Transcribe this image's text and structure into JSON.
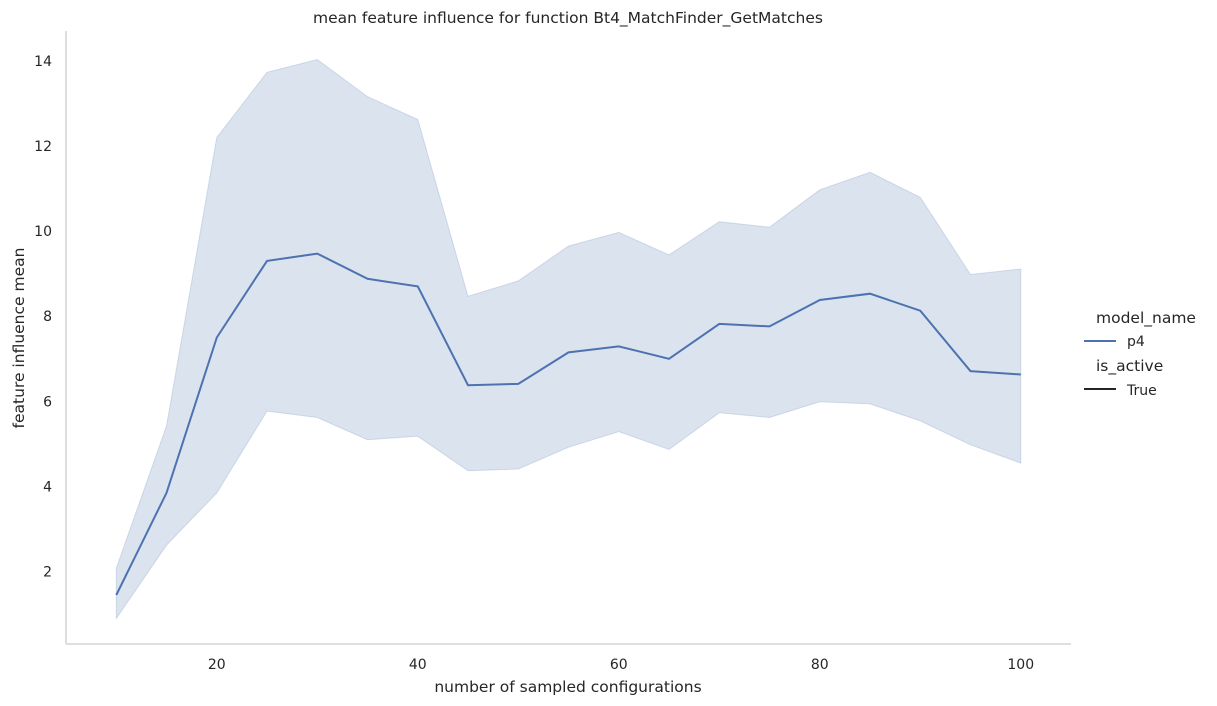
{
  "chart_data": {
    "type": "line",
    "title": "mean feature influence for function Bt4_MatchFinder_GetMatches",
    "xlabel": "number of sampled configurations",
    "ylabel": "feature influence mean",
    "xlim": [
      5,
      105
    ],
    "ylim": [
      0.3,
      14.7
    ],
    "xticks": [
      20,
      40,
      60,
      80,
      100
    ],
    "yticks": [
      2,
      4,
      6,
      8,
      10,
      12,
      14
    ],
    "grid": false,
    "legend_position": "right",
    "colors": {
      "line": "#4c72b0",
      "band": "#4c72b0",
      "axis": "#cccccc"
    },
    "legend": {
      "hue_title": "model_name",
      "hue_items": [
        "p4"
      ],
      "style_title": "is_active",
      "style_items": [
        "True"
      ]
    },
    "series": [
      {
        "name": "p4",
        "x": [
          10,
          15,
          20,
          25,
          30,
          35,
          40,
          45,
          50,
          55,
          60,
          65,
          70,
          75,
          80,
          85,
          90,
          95,
          100
        ],
        "y": [
          1.45,
          3.85,
          7.5,
          9.3,
          9.47,
          8.88,
          8.7,
          6.38,
          6.41,
          7.15,
          7.29,
          7.0,
          7.82,
          7.76,
          8.38,
          8.53,
          8.13,
          6.71,
          6.63
        ],
        "lower": [
          0.9,
          2.62,
          3.85,
          5.77,
          5.62,
          5.1,
          5.18,
          4.37,
          4.41,
          4.92,
          5.29,
          4.87,
          5.73,
          5.62,
          5.99,
          5.94,
          5.54,
          4.98,
          4.55
        ],
        "upper": [
          2.08,
          5.42,
          12.2,
          13.73,
          14.03,
          13.16,
          12.62,
          8.47,
          8.83,
          9.65,
          9.97,
          9.44,
          10.22,
          10.09,
          10.97,
          11.38,
          10.79,
          8.98,
          9.11
        ]
      }
    ]
  }
}
